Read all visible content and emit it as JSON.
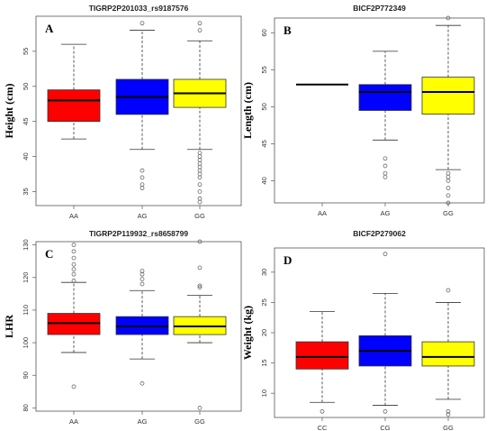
{
  "chart_data": [
    {
      "type": "box",
      "panel_label": "A",
      "title": "TIGRP2P201033_rs9187576",
      "ylabel": "Height (cm)",
      "ylim": [
        33,
        60
      ],
      "yticks": [
        35,
        40,
        45,
        50,
        55
      ],
      "categories": [
        "AA",
        "AG",
        "GG"
      ],
      "colors": [
        "#ff0000",
        "#0000ff",
        "#ffff00"
      ],
      "boxes": [
        {
          "whisker_low": 42.5,
          "q1": 45.0,
          "median": 48.0,
          "q3": 49.5,
          "whisker_high": 56.0,
          "outliers": []
        },
        {
          "whisker_low": 41.0,
          "q1": 46.0,
          "median": 48.5,
          "q3": 51.0,
          "whisker_high": 58.0,
          "outliers": [
            38.0,
            37.0,
            36.0,
            35.5,
            59.0
          ]
        },
        {
          "whisker_low": 41.0,
          "q1": 47.0,
          "median": 49.0,
          "q3": 51.0,
          "whisker_high": 56.5,
          "outliers": [
            40.5,
            40.0,
            39.5,
            39.0,
            38.5,
            38.0,
            37.5,
            37.0,
            36.0,
            35.0,
            34.0,
            33.5,
            58.0,
            59.0
          ]
        }
      ]
    },
    {
      "type": "box",
      "panel_label": "B",
      "title": "BICF2P772349",
      "ylabel": "Length (cm)",
      "ylim": [
        37,
        62
      ],
      "yticks": [
        40,
        45,
        50,
        55,
        60
      ],
      "categories": [
        "AA",
        "AG",
        "GG"
      ],
      "colors": [
        "#ff0000",
        "#0000ff",
        "#ffff00"
      ],
      "boxes": [
        {
          "whisker_low": 53.0,
          "q1": 53.0,
          "median": 53.0,
          "q3": 53.0,
          "whisker_high": 53.0,
          "outliers": []
        },
        {
          "whisker_low": 45.5,
          "q1": 49.5,
          "median": 52.0,
          "q3": 53.0,
          "whisker_high": 57.5,
          "outliers": [
            43.0,
            42.0,
            41.0,
            40.5
          ]
        },
        {
          "whisker_low": 41.5,
          "q1": 49.0,
          "median": 52.0,
          "q3": 54.0,
          "whisker_high": 61.0,
          "outliers": [
            41.0,
            40.5,
            40.0,
            39.0,
            38.0,
            37.0,
            62.0
          ]
        }
      ]
    },
    {
      "type": "box",
      "panel_label": "C",
      "title": "TIGRP2P119932_rs8658799",
      "ylabel": "LHR",
      "ylim": [
        79,
        131
      ],
      "yticks": [
        80,
        90,
        100,
        110,
        120,
        130
      ],
      "categories": [
        "AA",
        "AG",
        "GG"
      ],
      "colors": [
        "#ff0000",
        "#0000ff",
        "#ffff00"
      ],
      "boxes": [
        {
          "whisker_low": 97.0,
          "q1": 102.5,
          "median": 106.0,
          "q3": 109.0,
          "whisker_high": 118.5,
          "outliers": [
            86.5,
            119.0,
            121.0,
            122.5,
            124.0,
            126.0,
            128.0,
            130.0
          ]
        },
        {
          "whisker_low": 95.0,
          "q1": 102.5,
          "median": 105.0,
          "q3": 108.0,
          "whisker_high": 116.0,
          "outliers": [
            87.5,
            118.0,
            119.5,
            121.0,
            122.0
          ]
        },
        {
          "whisker_low": 100.0,
          "q1": 102.5,
          "median": 105.0,
          "q3": 108.0,
          "whisker_high": 114.5,
          "outliers": [
            80.0,
            117.0,
            117.5,
            123.0,
            131.0
          ]
        }
      ]
    },
    {
      "type": "box",
      "panel_label": "D",
      "title": "BICF2P279062",
      "ylabel": "Weight (kg)",
      "ylim": [
        6,
        34
      ],
      "yticks": [
        10,
        15,
        20,
        25,
        30
      ],
      "categories": [
        "CC",
        "CG",
        "GG"
      ],
      "colors": [
        "#ff0000",
        "#0000ff",
        "#ffff00"
      ],
      "boxes": [
        {
          "whisker_low": 8.5,
          "q1": 14.0,
          "median": 16.0,
          "q3": 18.5,
          "whisker_high": 23.5,
          "outliers": [
            7.0
          ]
        },
        {
          "whisker_low": 8.0,
          "q1": 14.5,
          "median": 17.0,
          "q3": 19.5,
          "whisker_high": 26.5,
          "outliers": [
            7.0,
            33.0
          ]
        },
        {
          "whisker_low": 9.0,
          "q1": 14.5,
          "median": 16.0,
          "q3": 18.5,
          "whisker_high": 25.0,
          "outliers": [
            7.0,
            6.5,
            27.0
          ]
        }
      ]
    }
  ]
}
